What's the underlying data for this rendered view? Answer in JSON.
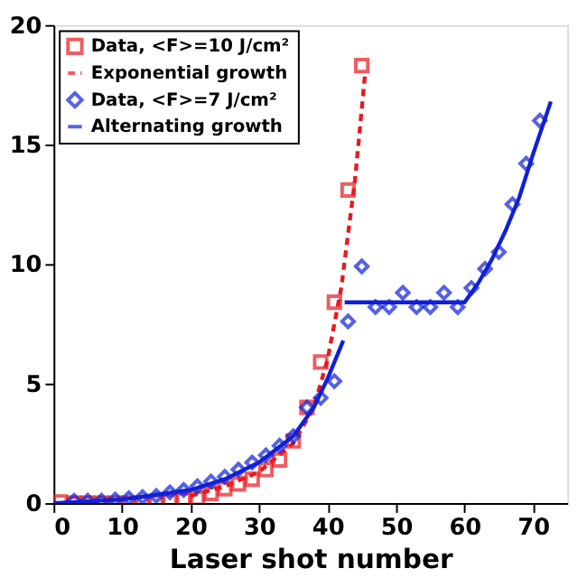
{
  "chart_data": {
    "type": "scatter",
    "xlabel": "Laser shot number",
    "xlim": [
      0,
      75
    ],
    "ylim": [
      0,
      20
    ],
    "xticks": [
      0,
      10,
      20,
      30,
      40,
      50,
      60,
      70
    ],
    "yticks": [
      0,
      5,
      10,
      15,
      20
    ],
    "grid": false,
    "legend": "top left",
    "series": [
      {
        "name": "Data, <F>=10 J/cm²",
        "type": "scatter",
        "marker": "square",
        "color": "#e8191f",
        "x": [
          1,
          3,
          5,
          7,
          9,
          11,
          13,
          15,
          17,
          19,
          21,
          23,
          25,
          27,
          29,
          31,
          33,
          35,
          37,
          39,
          41,
          43,
          45
        ],
        "values": [
          0.05,
          0,
          0,
          0,
          0,
          0,
          0,
          0.05,
          0.1,
          0.15,
          0.2,
          0.4,
          0.6,
          0.8,
          1.0,
          1.4,
          1.8,
          2.6,
          4.0,
          5.9,
          8.4,
          13.1,
          18.3
        ]
      },
      {
        "name": "Exponential growth",
        "type": "line",
        "line_style": "dashed",
        "color": "#e8191f",
        "x": [
          20,
          25,
          30,
          35,
          38,
          40,
          42,
          44,
          45.5
        ],
        "values": [
          0.3,
          0.7,
          1.3,
          2.5,
          4.0,
          6.0,
          9.0,
          13.5,
          18.0
        ]
      },
      {
        "name": "Data, <F>=7 J/cm²",
        "type": "scatter",
        "marker": "diamond",
        "color": "#1020d8",
        "x": [
          3,
          5,
          7,
          9,
          11,
          13,
          15,
          17,
          19,
          21,
          23,
          25,
          27,
          29,
          31,
          33,
          35,
          37,
          39,
          41,
          43,
          45,
          47,
          49,
          51,
          53,
          55,
          57,
          59,
          61,
          63,
          65,
          67,
          69,
          71
        ],
        "values": [
          0.1,
          0.1,
          0.1,
          0.15,
          0.2,
          0.25,
          0.3,
          0.45,
          0.55,
          0.7,
          0.9,
          1.1,
          1.4,
          1.7,
          2.0,
          2.4,
          2.8,
          4.0,
          4.4,
          5.1,
          7.6,
          9.9,
          8.2,
          8.2,
          8.8,
          8.2,
          8.2,
          8.8,
          8.2,
          9.0,
          9.8,
          10.5,
          12.5,
          14.2,
          16.0
        ]
      },
      {
        "name": "Alternating growth",
        "type": "line",
        "line_style": "solid",
        "color": "#1020d8",
        "x": [
          0,
          10,
          20,
          25,
          30,
          35,
          38,
          40,
          42.3,
          42.4,
          42.5,
          60,
          62,
          64,
          66,
          68,
          70,
          72.6
        ],
        "values": [
          0,
          0.15,
          0.55,
          1.0,
          1.7,
          2.8,
          4.0,
          5.2,
          6.8,
          null,
          8.4,
          8.4,
          9.2,
          10.2,
          11.4,
          12.8,
          14.6,
          16.8
        ]
      }
    ]
  }
}
